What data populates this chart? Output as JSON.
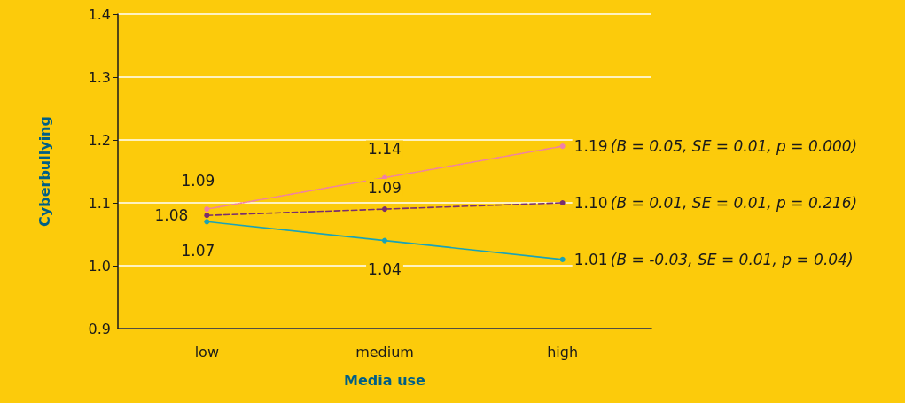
{
  "chart_data": {
    "type": "line",
    "xlabel": "Media use",
    "ylabel": "Cyberbullying",
    "categories": [
      "low",
      "medium",
      "high"
    ],
    "series": [
      {
        "color": "#f07fa8",
        "line_style": "dotted",
        "values": [
          1.09,
          1.14,
          1.19
        ],
        "value_labels": [
          "1.09",
          "1.14",
          "1.19 (B = 0.05, SE = 0.01, p = 0.000)"
        ]
      },
      {
        "color": "#7a2e6e",
        "line_style": "dashed",
        "values": [
          1.08,
          1.09,
          1.1
        ],
        "value_labels": [
          "1.08",
          "1.09",
          "1.10 (B = 0.01, SE = 0.01, p = 0.216)"
        ]
      },
      {
        "color": "#1aa3b8",
        "line_style": "solid",
        "values": [
          1.07,
          1.04,
          1.01
        ],
        "value_labels": [
          "1.07",
          "1.04",
          "1.01 (B = -0.03, SE = 0.01, p = 0.04)"
        ]
      }
    ],
    "ylim": [
      0.9,
      1.4
    ],
    "yticks": [
      0.9,
      {
        "value": 1.0,
        "label": "1.0"
      },
      1.1,
      1.2,
      1.3,
      1.4
    ],
    "grid": "y",
    "marker": "circle"
  }
}
